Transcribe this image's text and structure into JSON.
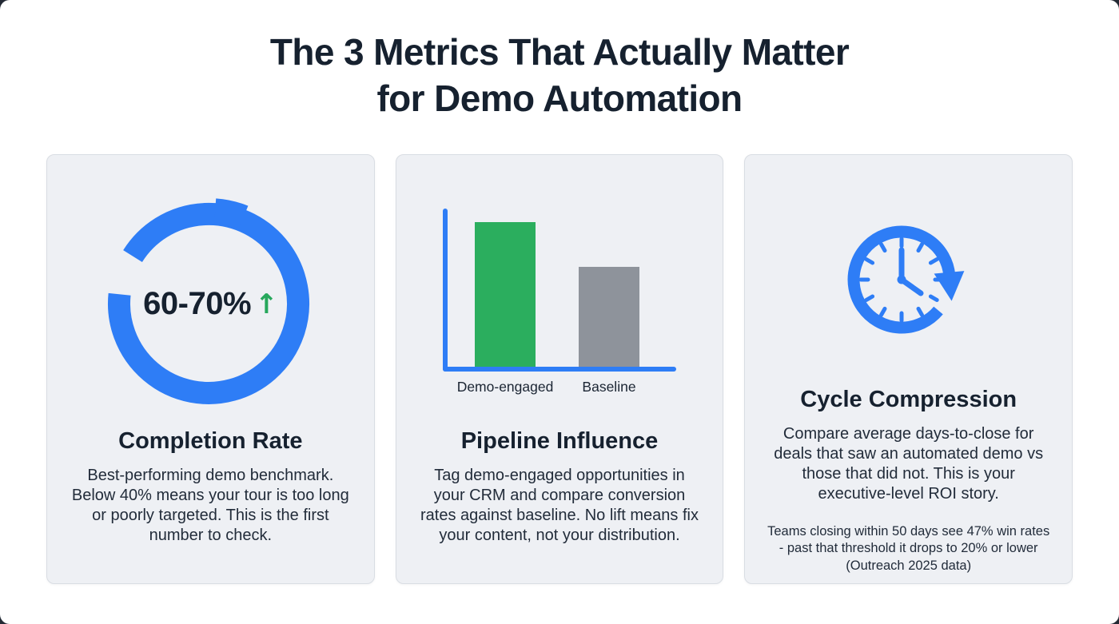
{
  "title": {
    "line1": "The 3 Metrics That Actually Matter",
    "line2": "for Demo Automation"
  },
  "cards": [
    {
      "heading": "Completion Rate",
      "metric_label": "60-70%",
      "trend_arrow": "↑",
      "icon": "donut-progress-ring",
      "body": "Best-performing demo benchmark. Below 40% means your tour is too long or poorly targeted. This is the first number to check."
    },
    {
      "heading": "Pipeline Influence",
      "icon": "bar-chart",
      "body": "Tag demo-engaged opportunities in your CRM and compare conversion rates against baseline. No lift means fix your content, not your distribution."
    },
    {
      "heading": "Cycle Compression",
      "icon": "clock-cycle-icon",
      "body": "Compare average days-to-close for deals that saw an automated demo vs those that did not. This is your executive-level ROI story.",
      "footnote": "Teams closing within 50 days see 47% win rates - past that threshold it drops to 20% or lower (Outreach 2025 data)"
    }
  ],
  "chart_data": [
    {
      "type": "donut",
      "title": "Completion Rate",
      "value_label": "60-70%",
      "trend": "up",
      "ring_color": "#2e7df6",
      "note": "decorative progress ring, approx 93% coverage, gap at upper-left"
    },
    {
      "type": "bar",
      "title": "Pipeline Influence",
      "categories": [
        "Demo-engaged",
        "Baseline"
      ],
      "values": [
        100,
        69
      ],
      "ymax": 100,
      "units": "relative height (no numeric axis shown)",
      "colors": [
        "#2bae5e",
        "#8e939b"
      ],
      "axis_color": "#2e7df6",
      "legend": "none",
      "grid": false
    }
  ],
  "colors": {
    "background": "#ffffff",
    "card_background": "#eef0f4",
    "card_border": "#d9dde3",
    "heading_text": "#16212f",
    "body_text": "#222c3a",
    "accent_blue": "#2e7df6",
    "accent_green": "#27a85c",
    "bar_gray": "#8e939b"
  }
}
